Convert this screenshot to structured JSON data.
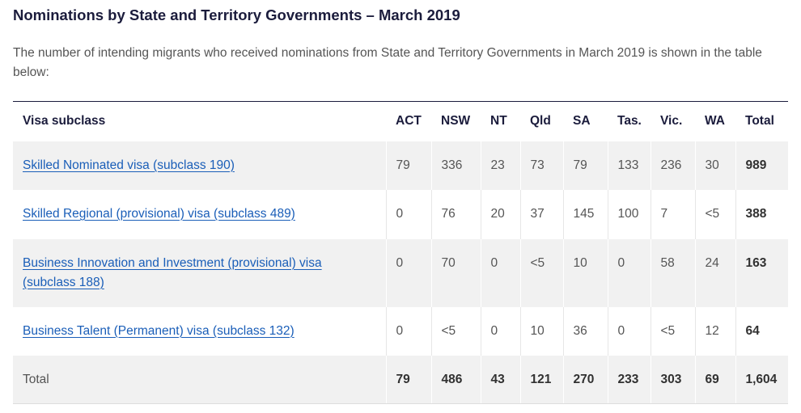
{
  "title": "Nominations by State and Territory Governments – March 2019",
  "intro": "The number of intending migrants who received nominations from State and Territory Governments in March 2019 is shown in the table below:",
  "table": {
    "headers": [
      "Visa subclass",
      "ACT",
      "NSW",
      "NT",
      "Qld",
      "SA",
      "Tas.",
      "Vic.",
      "WA",
      "Total"
    ],
    "rows": [
      {
        "visa": "Skilled Nominated visa (subclass 190)",
        "values": [
          "79",
          "336",
          "23",
          "73",
          "79",
          "133",
          "236",
          "30"
        ],
        "total": "989"
      },
      {
        "visa": "Skilled Regional (provisional) visa (subclass 489)",
        "values": [
          "0",
          "76",
          "20",
          "37",
          "145",
          "100",
          "7",
          "<5"
        ],
        "total": "388"
      },
      {
        "visa": "Business Innovation and Investment (provisional) visa (subclass 188)",
        "values": [
          "0",
          "70",
          "0",
          "<5",
          "10",
          "0",
          "58",
          "24"
        ],
        "total": "163"
      },
      {
        "visa": "Business Talent (Permanent) visa (subclass 132)",
        "values": [
          "0",
          "<5",
          "0",
          "10",
          "36",
          "0",
          "<5",
          "12"
        ],
        "total": "64"
      }
    ],
    "total_row": {
      "label": "Total",
      "values": [
        "79",
        "486",
        "43",
        "121",
        "270",
        "233",
        "303",
        "69"
      ],
      "total": "1,604"
    }
  },
  "colors": {
    "heading": "#1b1c3c",
    "link": "#1a5eb8",
    "row_shade": "#f1f1f1"
  }
}
